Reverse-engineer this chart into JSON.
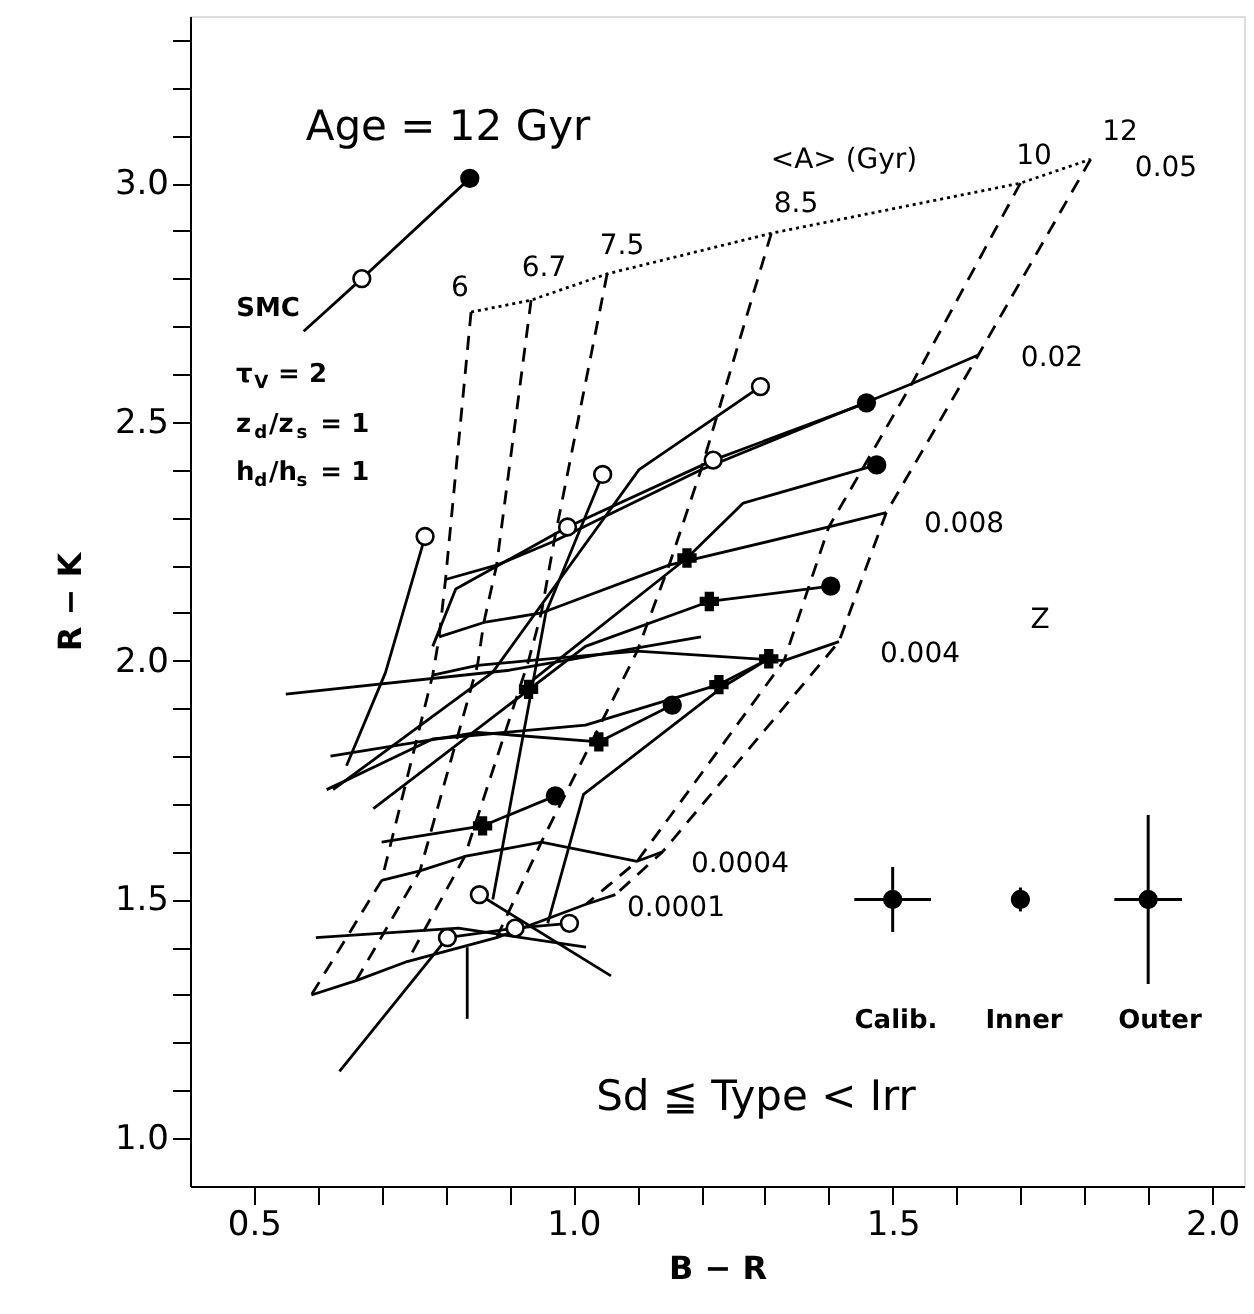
{
  "chart_data": {
    "type": "line",
    "xlabel": "B − R",
    "ylabel": "R − K",
    "xlim": [
      0.4,
      2.05
    ],
    "ylim": [
      0.9,
      3.35
    ],
    "xticks": [
      {
        "value": 0.5,
        "label": "0.5"
      },
      {
        "value": 0.6,
        "label": null
      },
      {
        "value": 0.7,
        "label": null
      },
      {
        "value": 0.8,
        "label": null
      },
      {
        "value": 0.9,
        "label": null
      },
      {
        "value": 1.0,
        "label": "1.0"
      },
      {
        "value": 1.1,
        "label": null
      },
      {
        "value": 1.2,
        "label": null
      },
      {
        "value": 1.3,
        "label": null
      },
      {
        "value": 1.4,
        "label": null
      },
      {
        "value": 1.5,
        "label": "1.5"
      },
      {
        "value": 1.6,
        "label": null
      },
      {
        "value": 1.7,
        "label": null
      },
      {
        "value": 1.8,
        "label": null
      },
      {
        "value": 1.9,
        "label": null
      },
      {
        "value": 2.0,
        "label": "2.0"
      }
    ],
    "yticks": [
      {
        "value": 1.0,
        "label": "1.0"
      },
      {
        "value": 1.1,
        "label": null
      },
      {
        "value": 1.2,
        "label": null
      },
      {
        "value": 1.3,
        "label": null
      },
      {
        "value": 1.4,
        "label": null
      },
      {
        "value": 1.5,
        "label": "1.5"
      },
      {
        "value": 1.6,
        "label": null
      },
      {
        "value": 1.7,
        "label": null
      },
      {
        "value": 1.8,
        "label": null
      },
      {
        "value": 1.9,
        "label": null
      },
      {
        "value": 2.0,
        "label": "2.0"
      },
      {
        "value": 2.1,
        "label": null
      },
      {
        "value": 2.2,
        "label": null
      },
      {
        "value": 2.3,
        "label": null
      },
      {
        "value": 2.4,
        "label": null
      },
      {
        "value": 2.5,
        "label": "2.5"
      },
      {
        "value": 2.6,
        "label": null
      },
      {
        "value": 2.7,
        "label": null
      },
      {
        "value": 2.8,
        "label": null
      },
      {
        "value": 2.9,
        "label": null
      },
      {
        "value": 3.0,
        "label": "3.0"
      },
      {
        "value": 3.1,
        "label": null
      },
      {
        "value": 3.2,
        "label": null
      },
      {
        "value": 3.3,
        "label": null
      }
    ],
    "grid": false,
    "series": [
      {
        "type": "line",
        "line_style": "dotted",
        "color": "#000000",
        "x": [
          0.84,
          0.934,
          1.053,
          1.31,
          1.7,
          1.81
        ],
        "values": [
          2.73,
          2.755,
          2.81,
          2.895,
          3.0,
          3.05
        ]
      },
      {
        "type": "line",
        "line_style": "solid",
        "color": "#000000",
        "x": [
          0.8,
          0.88,
          0.97,
          1.2,
          1.53,
          1.634
        ],
        "values": [
          2.17,
          2.2,
          2.25,
          2.4,
          2.58,
          2.64
        ]
      },
      {
        "type": "line",
        "line_style": "solid",
        "color": "#000000",
        "x": [
          0.79,
          0.86,
          0.95,
          1.15,
          1.4,
          1.49
        ],
        "values": [
          2.05,
          2.08,
          2.1,
          2.2,
          2.28,
          2.31
        ]
      },
      {
        "type": "line",
        "line_style": "solid",
        "color": "#000000",
        "x": [
          0.78,
          0.85,
          0.93,
          1.1,
          1.33,
          1.416
        ],
        "values": [
          1.97,
          1.99,
          2.0,
          2.02,
          2.0,
          2.04
        ]
      },
      {
        "type": "line",
        "line_style": "solid",
        "color": "#000000",
        "x": [
          0.7,
          0.76,
          0.83,
          0.95,
          1.1,
          1.14
        ],
        "values": [
          1.54,
          1.56,
          1.59,
          1.62,
          1.58,
          1.6
        ]
      },
      {
        "type": "line",
        "line_style": "solid",
        "color": "#000000",
        "x": [
          0.59,
          0.66,
          0.74,
          0.88,
          1.02,
          1.066
        ],
        "values": [
          1.3,
          1.33,
          1.37,
          1.42,
          1.49,
          1.51
        ]
      },
      {
        "type": "line",
        "line_style": "dashed",
        "color": "#000000",
        "x": [
          0.84,
          0.8,
          0.79,
          0.78,
          0.7,
          0.59
        ],
        "values": [
          2.73,
          2.17,
          2.05,
          1.97,
          1.54,
          1.3
        ]
      },
      {
        "type": "line",
        "line_style": "dashed",
        "color": "#000000",
        "x": [
          0.934,
          0.88,
          0.86,
          0.85,
          0.76,
          0.66
        ],
        "values": [
          2.755,
          2.2,
          2.08,
          1.99,
          1.56,
          1.33
        ]
      },
      {
        "type": "line",
        "line_style": "dashed",
        "color": "#000000",
        "x": [
          1.053,
          0.97,
          0.95,
          0.93,
          0.83,
          0.74
        ],
        "values": [
          2.81,
          2.25,
          2.1,
          2.0,
          1.59,
          1.37
        ]
      },
      {
        "type": "line",
        "line_style": "dashed",
        "color": "#000000",
        "x": [
          1.31,
          1.2,
          1.15,
          1.1,
          0.95,
          0.88
        ],
        "values": [
          2.895,
          2.4,
          2.2,
          2.02,
          1.62,
          1.42
        ]
      },
      {
        "type": "line",
        "line_style": "dashed",
        "color": "#000000",
        "x": [
          1.7,
          1.53,
          1.4,
          1.33,
          1.1,
          1.02
        ],
        "values": [
          3.0,
          2.58,
          2.28,
          2.0,
          1.58,
          1.49
        ]
      },
      {
        "type": "line",
        "line_style": "dashed",
        "color": "#000000",
        "x": [
          1.81,
          1.634,
          1.49,
          1.416,
          1.14,
          1.066
        ],
        "values": [
          3.05,
          2.64,
          2.31,
          2.04,
          1.6,
          1.51
        ]
      },
      {
        "type": "line",
        "line_style": "solid",
        "color": "#000000",
        "x": [
          0.578,
          0.669,
          0.838
        ],
        "values": [
          2.69,
          2.8,
          3.01
        ]
      },
      {
        "type": "line",
        "line_style": "solid",
        "color": "#000000",
        "x": [
          0.624,
          0.874,
          1.103,
          1.293
        ],
        "values": [
          1.73,
          1.976,
          2.4,
          2.574
        ]
      },
      {
        "type": "line",
        "line_style": "solid",
        "color": "#000000",
        "x": [
          0.78,
          0.816,
          0.991,
          1.219,
          1.459
        ],
        "values": [
          2.03,
          2.15,
          2.28,
          2.42,
          2.54
        ]
      },
      {
        "type": "line",
        "line_style": "solid",
        "color": "#000000",
        "x": [
          0.937,
          1.178,
          1.266,
          1.475
        ],
        "values": [
          1.96,
          2.215,
          2.33,
          2.41
        ]
      },
      {
        "type": "line",
        "line_style": "solid",
        "color": "#000000",
        "x": [
          0.874,
          0.957,
          1.046
        ],
        "values": [
          1.5,
          2.1,
          2.39
        ]
      },
      {
        "type": "line",
        "line_style": "solid",
        "color": "#000000",
        "x": [
          0.645,
          0.706,
          0.768
        ],
        "values": [
          1.78,
          1.975,
          2.26
        ]
      },
      {
        "type": "line",
        "line_style": "solid",
        "color": "#000000",
        "x": [
          0.687,
          1.019,
          1.213,
          1.403
        ],
        "values": [
          1.69,
          2.03,
          2.124,
          2.156
        ]
      },
      {
        "type": "line",
        "line_style": "solid",
        "color": "#000000",
        "x": [
          0.614,
          0.78,
          1.019,
          1.228,
          1.306
        ],
        "values": [
          1.73,
          1.836,
          1.865,
          1.95,
          2.004
        ]
      },
      {
        "type": "line",
        "line_style": "solid",
        "color": "#000000",
        "x": [
          0.62,
          0.85,
          1.04,
          1.155
        ],
        "values": [
          1.8,
          1.85,
          1.83,
          1.907
        ]
      },
      {
        "type": "line",
        "line_style": "solid",
        "color": "#000000",
        "x": [
          0.7,
          0.858,
          0.972
        ],
        "values": [
          1.62,
          1.654,
          1.717
        ]
      },
      {
        "type": "line",
        "line_style": "solid",
        "color": "#000000",
        "x": [
          0.853,
          1.059
        ],
        "values": [
          1.51,
          1.34
        ]
      },
      {
        "type": "line",
        "line_style": "solid",
        "color": "#000000",
        "x": [
          0.634,
          0.803,
          0.909,
          0.994
        ],
        "values": [
          1.14,
          1.42,
          1.44,
          1.45
        ]
      },
      {
        "type": "line",
        "line_style": "solid",
        "color": "#000000",
        "x": [
          0.834,
          0.834
        ],
        "values": [
          1.25,
          1.4
        ]
      },
      {
        "type": "line",
        "line_style": "solid",
        "color": "#000000",
        "x": [
          0.96,
          1.016,
          1.234,
          1.306
        ],
        "values": [
          1.45,
          1.72,
          1.945,
          2.004
        ]
      },
      {
        "type": "line",
        "line_style": "solid",
        "color": "#000000",
        "x": [
          0.55,
          0.9,
          1.2
        ],
        "values": [
          1.93,
          1.98,
          2.05
        ]
      },
      {
        "type": "line",
        "line_style": "solid",
        "color": "#000000",
        "x": [
          0.597,
          0.82,
          1.02
        ],
        "values": [
          1.42,
          1.44,
          1.4
        ]
      },
      {
        "type": "scatter",
        "marker": "circle",
        "color": "#ffffff",
        "x": [
          0.669,
          1.293,
          1.219,
          1.046,
          0.768,
          0.991,
          0.853,
          0.803,
          0.909,
          0.994
        ],
        "values": [
          2.8,
          2.574,
          2.42,
          2.39,
          2.26,
          2.28,
          1.51,
          1.42,
          1.44,
          1.45
        ]
      },
      {
        "type": "scatter",
        "marker": "circle",
        "color": "#000000",
        "x": [
          0.838,
          1.459,
          1.475,
          1.403,
          1.155,
          0.972
        ],
        "values": [
          3.01,
          2.54,
          2.41,
          2.156,
          1.907,
          1.717
        ]
      },
      {
        "type": "scatter",
        "marker": "cross",
        "color": "#000000",
        "x": [
          1.178,
          1.213,
          1.306,
          1.228,
          1.04,
          0.858,
          0.93
        ],
        "values": [
          2.215,
          2.124,
          2.004,
          1.95,
          1.83,
          1.654,
          1.94
        ]
      },
      {
        "type": "scatter",
        "marker": "circle",
        "color": "#000000",
        "x": [
          1.5,
          1.7,
          1.9
        ],
        "values": [
          1.5,
          1.5,
          1.5
        ],
        "errors": [
          0.068,
          0.025,
          0.177
        ],
        "xerrors": [
          0.06,
          null,
          0.053
        ]
      }
    ],
    "annotations": [
      "Age = 12 Gyr",
      "SMC",
      "τ$_{V}$ = 2",
      "z$_{d}$/z$_{s}$ = 1",
      "h$_{d}$/h$_{s}$ = 1",
      "<A> (Gyr)",
      "6",
      "6.7",
      "7.5",
      "8.5",
      "10",
      "12",
      "0.05",
      "0.02",
      "0.008",
      "0.004",
      "Z",
      "0.0004",
      "0.0001",
      "Calib.",
      "Inner",
      "Outer",
      "Sd ≦ Type < Irr"
    ]
  }
}
